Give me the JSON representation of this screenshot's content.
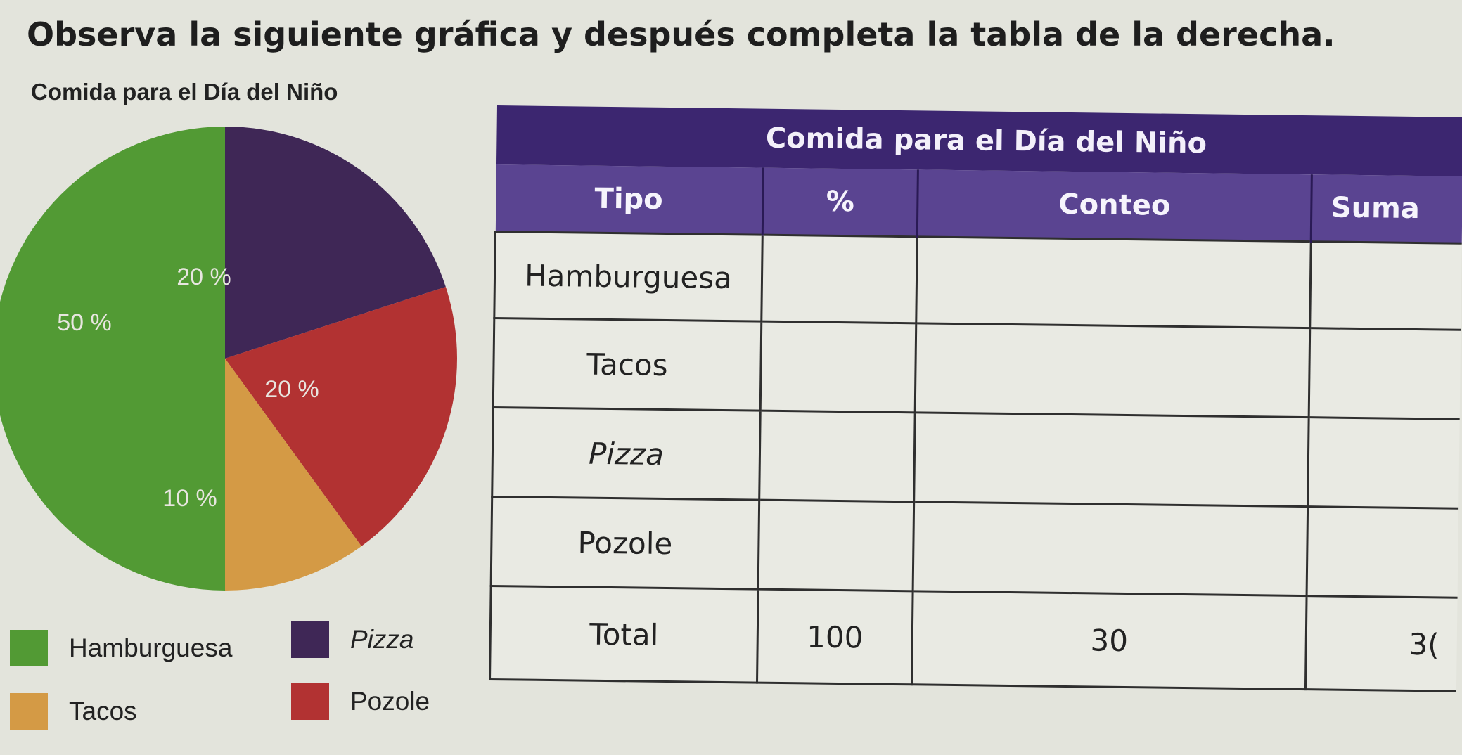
{
  "instruction": "Observa la siguiente gráfica y después completa la tabla de la derecha.",
  "chart_data": {
    "type": "pie",
    "title": "Comida para el Día del Niño",
    "categories": [
      "Hamburguesa",
      "Pizza",
      "Pozole",
      "Tacos"
    ],
    "values": [
      50,
      20,
      20,
      10
    ],
    "labels": [
      "50 %",
      "20 %",
      "20 %",
      "10 %"
    ],
    "colors": [
      "#529a34",
      "#3f2756",
      "#b23232",
      "#d49a45"
    ],
    "start": "top, clockwise: Pizza, Pozole, Tacos, Hamburguesa",
    "legend_position": "bottom"
  },
  "legend": [
    {
      "label": "Hamburguesa",
      "color": "#529a34"
    },
    {
      "label": "Pizza",
      "color": "#3f2756"
    },
    {
      "label": "Tacos",
      "color": "#d49a45"
    },
    {
      "label": "Pozole",
      "color": "#b23232"
    }
  ],
  "table": {
    "title": "Comida para el Día del Niño",
    "headers": [
      "Tipo",
      "%",
      "Conteo",
      "Suma"
    ],
    "rows": [
      {
        "tipo": "Hamburguesa",
        "pct": "",
        "conteo": "",
        "suma": ""
      },
      {
        "tipo": "Tacos",
        "pct": "",
        "conteo": "",
        "suma": ""
      },
      {
        "tipo": "Pizza",
        "pct": "",
        "conteo": "",
        "suma": ""
      },
      {
        "tipo": "Pozole",
        "pct": "",
        "conteo": "",
        "suma": ""
      }
    ],
    "total": {
      "tipo": "Total",
      "pct": "100",
      "conteo": "30",
      "suma": "3("
    }
  }
}
